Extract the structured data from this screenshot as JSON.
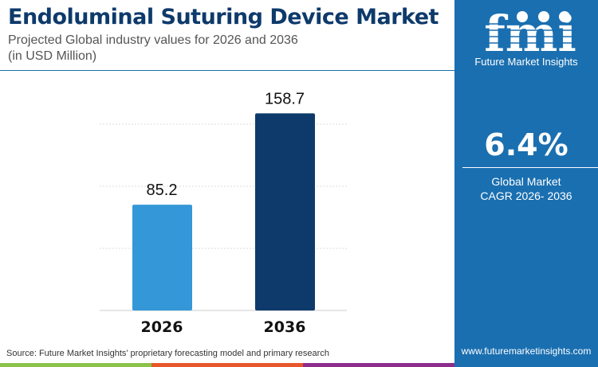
{
  "header": {
    "title": "Endoluminal Suturing Device Market",
    "subtitle_line1": "Projected Global industry values for 2026 and 2036",
    "subtitle_line2": "(in USD Million)"
  },
  "panel": {
    "logo_text": "Future Market Insights",
    "cagr_value": "6.4%",
    "cagr_label_line1": "Global Market",
    "cagr_label_line2": "CAGR 2026- 2036",
    "url": "www.futuremarketinsights.com"
  },
  "footer": {
    "source": "Source: Future Market Insights’ proprietary forecasting model and primary research"
  },
  "colors": {
    "panel": "#1a6fb0",
    "bar_2026": "#3497d8",
    "bar_2036": "#0e3a6b",
    "strip": [
      "#8bc34a",
      "#e8572a",
      "#8e2c8e"
    ]
  },
  "chart_data": {
    "type": "bar",
    "categories": [
      "2026",
      "2036"
    ],
    "values": [
      85.2,
      158.7
    ],
    "data_labels": [
      "85.2",
      "158.7"
    ],
    "ylim": [
      0,
      160
    ],
    "gridlines": [
      50,
      100,
      150
    ],
    "grid": true,
    "title": "",
    "xlabel": "",
    "ylabel": ""
  }
}
